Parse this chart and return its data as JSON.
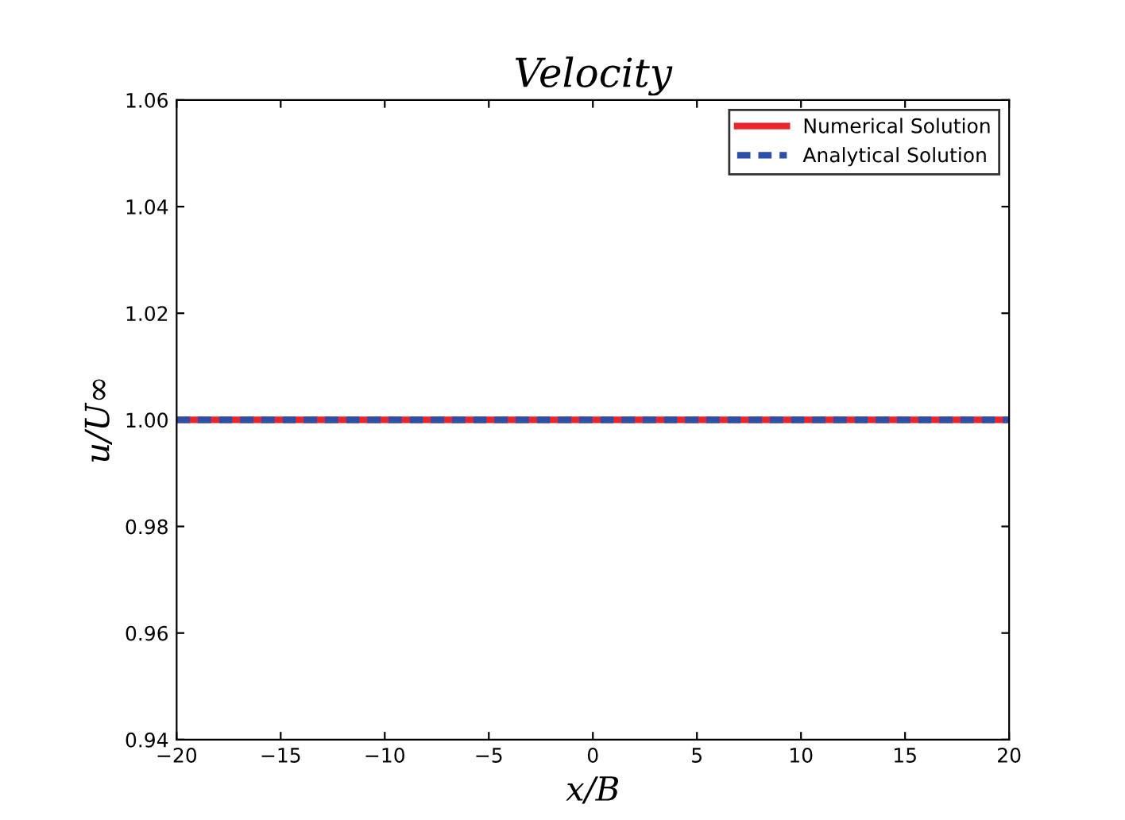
{
  "chart_data": {
    "type": "line",
    "title": "Velocity",
    "xlabel": "x/B",
    "ylabel": "u/U∞",
    "x": [
      -20,
      20
    ],
    "series": [
      {
        "name": "Numerical Solution",
        "color": "#e8262b",
        "values": [
          1.0,
          1.0
        ],
        "line_style": "solid"
      },
      {
        "name": "Analytical Solution",
        "color": "#2e4fa8",
        "values": [
          1.0,
          1.0
        ],
        "line_style": "dashed"
      }
    ],
    "xlim": [
      -20,
      20
    ],
    "xticks": [
      {
        "value": -20,
        "label": "−20"
      },
      {
        "value": -15,
        "label": "−15"
      },
      {
        "value": -10,
        "label": "−10"
      },
      {
        "value": -5,
        "label": "−5"
      },
      0,
      5,
      10,
      15,
      20
    ],
    "ylim": [
      0.94,
      1.06
    ],
    "yticks": [
      {
        "value": 0.94,
        "label": "0.94"
      },
      {
        "value": 0.96,
        "label": "0.96"
      },
      {
        "value": 0.98,
        "label": "0.98"
      },
      {
        "value": 1.0,
        "label": "1.00"
      },
      {
        "value": 1.02,
        "label": "1.02"
      },
      {
        "value": 1.04,
        "label": "1.04"
      },
      {
        "value": 1.06,
        "label": "1.06"
      }
    ],
    "grid": false,
    "legend": "top right",
    "marker": "none"
  }
}
